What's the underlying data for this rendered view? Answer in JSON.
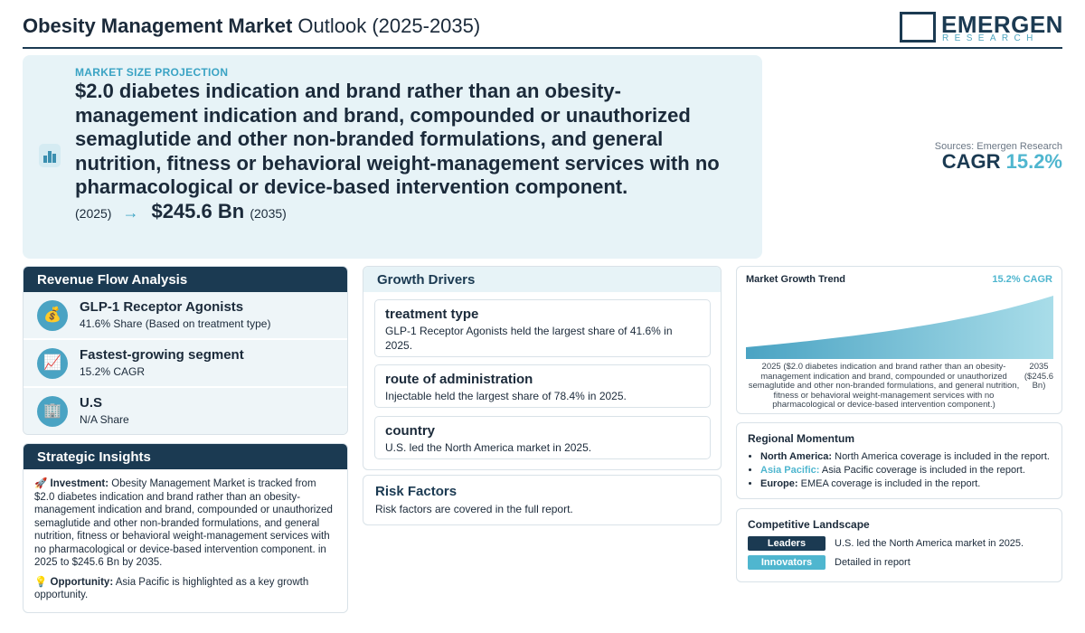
{
  "header": {
    "title_bold": "Obesity Management Market",
    "title_rest": " Outlook (2025-2035)",
    "logo_name": "EMERGEN",
    "logo_sub": "RESEARCH"
  },
  "hero": {
    "eyebrow": "MARKET SIZE PROJECTION",
    "start_value": "$2.0 diabetes indication and brand rather than an obesity-management indication and brand, compounded or unauthorized semaglutide and other non-branded formulations, and general nutrition, fitness or behavioral weight-management services with no pharmacological or device-based intervention component.",
    "start_year": "(2025)",
    "arrow": "→",
    "end_value": "$245.6 Bn",
    "end_year": "(2035)"
  },
  "cagr_box": {
    "source": "Sources: Emergen Research",
    "label": "CAGR",
    "value": "15.2%"
  },
  "revenue_flow": {
    "heading": "Revenue Flow Analysis",
    "items": [
      {
        "icon": "money-bag-icon",
        "title": "GLP-1 Receptor Agonists",
        "sub": "41.6% Share (Based on treatment type)"
      },
      {
        "icon": "chart-up-icon",
        "title": "Fastest-growing segment",
        "sub": "15.2% CAGR"
      },
      {
        "icon": "building-icon",
        "title": "U.S",
        "sub": "N/A Share"
      }
    ]
  },
  "insights": {
    "heading": "Strategic Insights",
    "investment_label": "Investment:",
    "investment_text": " Obesity Management Market is tracked from $2.0 diabetes indication and brand rather than an obesity-management indication and brand, compounded or unauthorized semaglutide and other non-branded formulations, and general nutrition, fitness or behavioral weight-management services with no pharmacological or device-based intervention component. in 2025 to $245.6 Bn by 2035.",
    "opportunity_label": "Opportunity:",
    "opportunity_text": " Asia Pacific is highlighted as a key growth opportunity."
  },
  "drivers": {
    "heading": "Growth Drivers",
    "items": [
      {
        "title": "treatment type",
        "text": "GLP-1 Receptor Agonists held the largest share of 41.6% in 2025."
      },
      {
        "title": "route of administration",
        "text": "Injectable held the largest share of 78.4% in 2025."
      },
      {
        "title": "country",
        "text": "U.S. led the North America market in 2025."
      }
    ]
  },
  "risk": {
    "heading": "Risk Factors",
    "text": "Risk factors are covered in the full report."
  },
  "trend": {
    "title": "Market Growth Trend",
    "cagr_label": "15.2% CAGR",
    "start_label": "2025 ($2.0 diabetes indication and brand rather than an obesity-management indication and brand, compounded or unauthorized semaglutide and other non-branded formulations, and general nutrition, fitness or behavioral weight-management services with no pharmacological or device-based intervention component.)",
    "end_label": "2035 ($245.6 Bn)"
  },
  "chart_data": {
    "type": "area",
    "x": [
      2025,
      2035
    ],
    "x_labels": [
      "2025 ($2.0 diabetes indication and brand rather than an obesity-management indication and brand, compounded or unauthorized semaglutide and other non-branded formulations, and general nutrition, fitness or behavioral weight-management services with no pharmacological or device-based intervention component.)",
      "2035 ($245.6 Bn)"
    ],
    "title": "Market Growth Trend",
    "annotation": "15.2% CAGR",
    "grid": false
  },
  "regional": {
    "heading": "Regional Momentum",
    "items": [
      {
        "region": "North America:",
        "text": " North America coverage is included in the report.",
        "color": "#1b2a3a"
      },
      {
        "region": "Asia Pacific:",
        "text": " Asia Pacific coverage is included in the report.",
        "color": "#4fb6cf"
      },
      {
        "region": "Europe:",
        "text": " EMEA coverage is included in the report.",
        "color": "#1b2a3a"
      }
    ]
  },
  "competitive": {
    "heading": "Competitive Landscape",
    "rows": [
      {
        "badge": "Leaders",
        "text": "U.S. led the North America market in 2025.",
        "color": "#1b3a52"
      },
      {
        "badge": "Innovators",
        "text": "Detailed in report",
        "color": "#4fb6cf"
      }
    ]
  },
  "colors": {
    "navy": "#1b3a52",
    "accent": "#4fb6cf",
    "hero_bg": "#e7f3f7"
  }
}
